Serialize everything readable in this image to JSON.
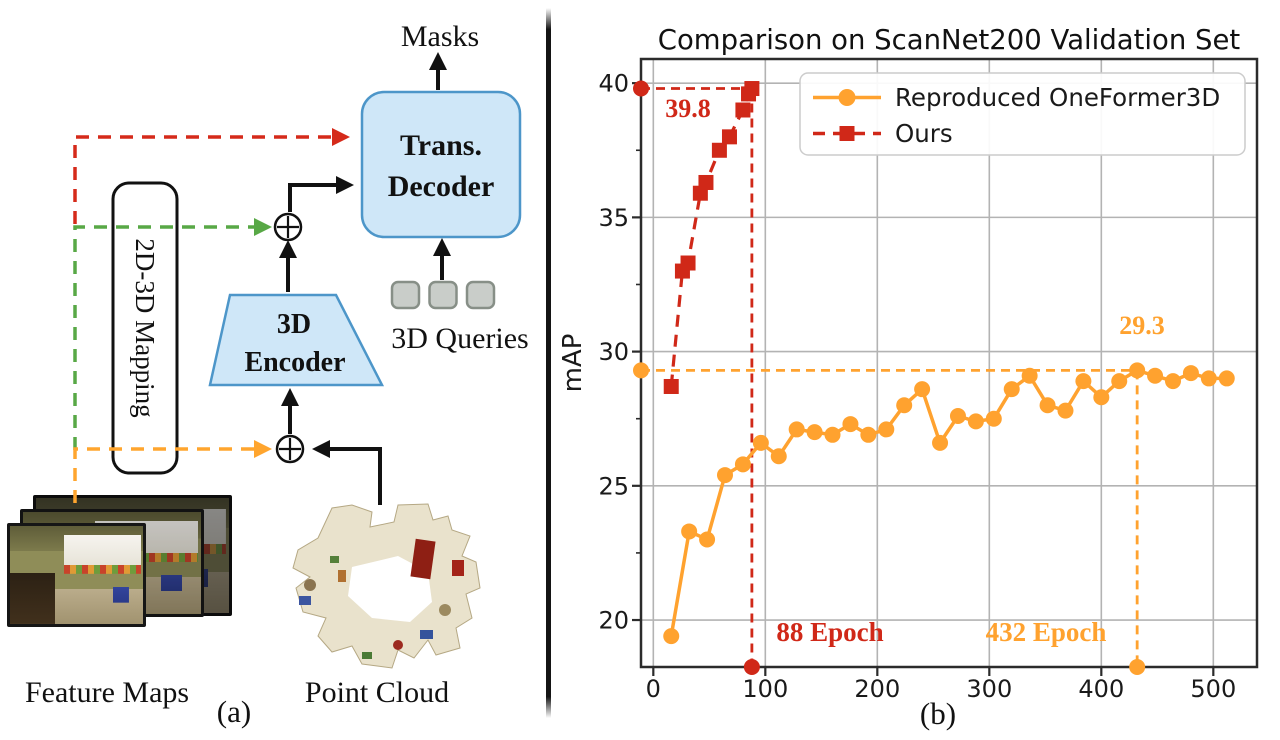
{
  "figure": {
    "panel_a_label": "(a)",
    "panel_b_label": "(b)"
  },
  "diagram": {
    "masks_label": "Masks",
    "decoder_label_line1": "Trans.",
    "decoder_label_line2": "Decoder",
    "mapping_label": "2D-3D Mapping",
    "encoder_label_line1": "3D",
    "encoder_label_line2": "Encoder",
    "queries_label": "3D Queries",
    "feature_maps_label": "Feature Maps",
    "point_cloud_label": "Point Cloud",
    "colors": {
      "box_fill": "#cfe7f8",
      "box_border": "#4d96c9",
      "red_dash": "#d52a1a",
      "green_dash": "#58a846",
      "orange_dash": "#ffa52e"
    }
  },
  "chart_data": {
    "type": "line",
    "title": "Comparison on ScanNet200 Validation Set",
    "xlabel": "",
    "ylabel": "mAP",
    "xlim": [
      -11,
      539
    ],
    "ylim": [
      18.25,
      40.9
    ],
    "x_ticks": [
      0,
      100,
      200,
      300,
      400,
      500
    ],
    "y_ticks": [
      20,
      25,
      30,
      35,
      40
    ],
    "y_minor_ticks": [
      22.5,
      27.5,
      32.5,
      37.5
    ],
    "grid": true,
    "legend_position": "upper right",
    "series": [
      {
        "name": "Reproduced OneFormer3D",
        "color": "#FFA22F",
        "marker": "circle",
        "line_style": "solid",
        "points": [
          [
            16,
            19.4
          ],
          [
            32,
            23.3
          ],
          [
            48,
            23.0
          ],
          [
            64,
            25.4
          ],
          [
            80,
            25.8
          ],
          [
            96,
            26.6
          ],
          [
            112,
            26.1
          ],
          [
            128,
            27.1
          ],
          [
            144,
            27.0
          ],
          [
            160,
            26.9
          ],
          [
            176,
            27.3
          ],
          [
            192,
            26.9
          ],
          [
            208,
            27.1
          ],
          [
            224,
            28.0
          ],
          [
            240,
            28.6
          ],
          [
            256,
            26.6
          ],
          [
            272,
            27.6
          ],
          [
            288,
            27.4
          ],
          [
            304,
            27.5
          ],
          [
            320,
            28.6
          ],
          [
            336,
            29.1
          ],
          [
            352,
            28.0
          ],
          [
            368,
            27.8
          ],
          [
            384,
            28.9
          ],
          [
            400,
            28.3
          ],
          [
            416,
            28.9
          ],
          [
            432,
            29.3
          ],
          [
            448,
            29.1
          ],
          [
            464,
            28.9
          ],
          [
            480,
            29.2
          ],
          [
            496,
            29.0
          ],
          [
            512,
            29.0
          ]
        ]
      },
      {
        "name": "Ours",
        "color": "#D02818",
        "marker": "square",
        "line_style": "dashed",
        "points": [
          [
            16,
            28.7
          ],
          [
            26,
            33.0
          ],
          [
            31,
            33.3
          ],
          [
            42,
            35.9
          ],
          [
            47,
            36.3
          ],
          [
            59,
            37.5
          ],
          [
            68,
            38.0
          ],
          [
            80,
            39.0
          ],
          [
            85,
            39.6
          ],
          [
            88,
            39.8
          ]
        ]
      }
    ],
    "annotations": [
      {
        "id": "ours_best",
        "series": "Ours",
        "value_label": "39.8",
        "epoch_label": "88 Epoch",
        "epoch": 88,
        "map": 39.8,
        "color": "#D02818"
      },
      {
        "id": "oneformer_best",
        "series": "Reproduced OneFormer3D",
        "value_label": "29.3",
        "epoch_label": "432 Epoch",
        "epoch": 432,
        "map": 29.3,
        "color": "#FFA22F"
      }
    ]
  }
}
